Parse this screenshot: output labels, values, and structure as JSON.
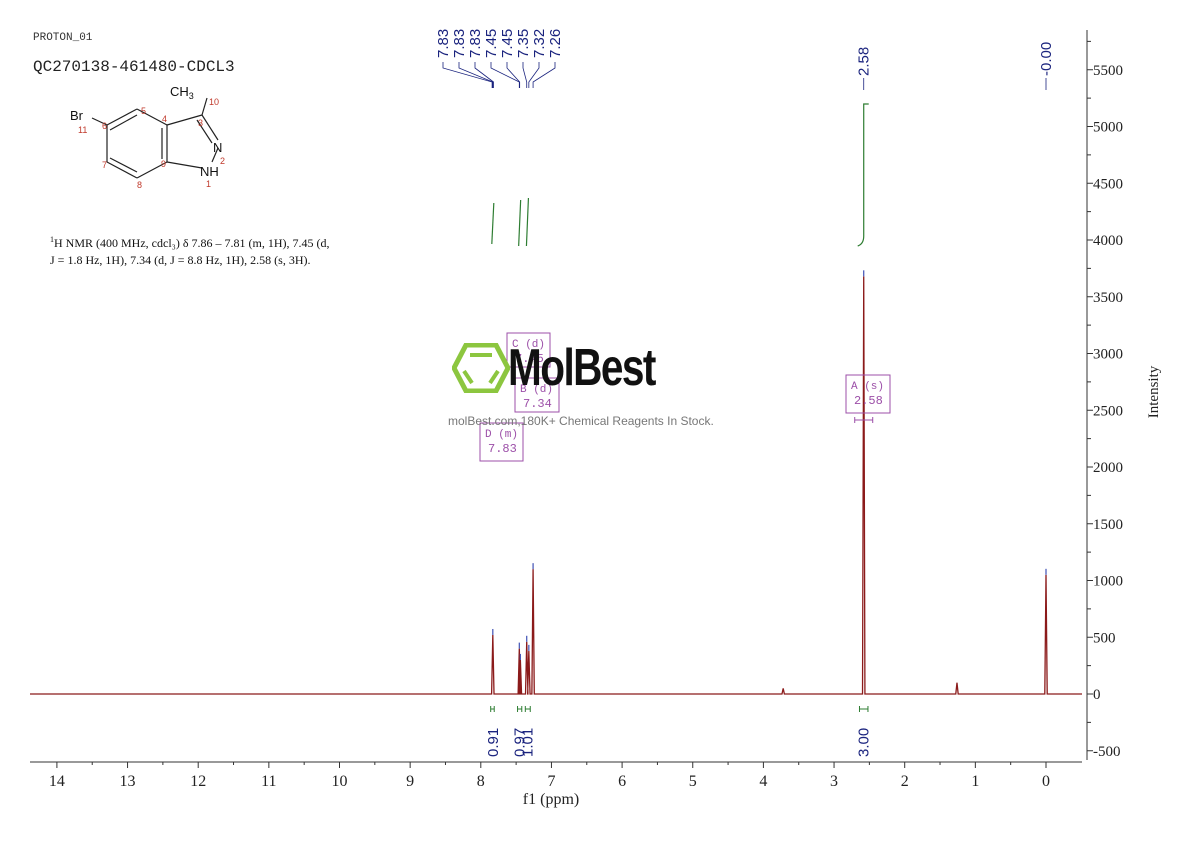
{
  "header": {
    "experiment": "PROTON_01",
    "sample_id": "QC270138-461480-CDCL3"
  },
  "molecule": {
    "name": "5-bromo-3-methyl-1H-indazole",
    "atoms": {
      "br": "Br",
      "ch3": "CH",
      "ch3_sub": "3",
      "n2": "N",
      "nh": "NH"
    },
    "numbering": [
      "1",
      "2",
      "3",
      "4",
      "5",
      "6",
      "7",
      "8",
      "9",
      "10",
      "11"
    ]
  },
  "nmr_description": {
    "line1": "H NMR (400 MHz, cdcl₃) δ 7.86 – 7.81 (m, 1H), 7.45 (d,",
    "sup": "1",
    "line2": "J = 1.8 Hz, 1H), 7.34 (d, J = 8.8 Hz, 1H), 2.58 (s, 3H)."
  },
  "watermark": {
    "brand": "MolBest",
    "tagline": "molBest.com,180K+ Chemical Reagents In Stock.",
    "logo_color": "#8cc63f"
  },
  "colors": {
    "spectrum": "#8b1a1a",
    "peak_label": "#1a237e",
    "integral": "#2e7d32",
    "multiplet_box": "#9c4fa8",
    "axis": "#333333"
  },
  "chart_data": {
    "type": "line",
    "title": "QC270138-461480-CDCL3",
    "xlabel": "f1 (ppm)",
    "ylabel": "Intensity",
    "xlim": [
      14.5,
      -0.5
    ],
    "ylim": [
      -600,
      5800
    ],
    "x_ticks": [
      "14",
      "13",
      "12",
      "11",
      "10",
      "9",
      "8",
      "7",
      "6",
      "5",
      "4",
      "3",
      "2",
      "1",
      "0"
    ],
    "y_ticks": [
      "-500",
      "0",
      "500",
      "1000",
      "1500",
      "2000",
      "2500",
      "3000",
      "3500",
      "4000",
      "4500",
      "5000",
      "5500"
    ],
    "peak_labels": [
      "7.83",
      "7.83",
      "7.83",
      "7.45",
      "7.45",
      "7.35",
      "7.32",
      "7.26",
      "2.58",
      "-0.00"
    ],
    "peaks": [
      {
        "ppm": 7.83,
        "intensity": 520
      },
      {
        "ppm": 7.455,
        "intensity": 400
      },
      {
        "ppm": 7.44,
        "intensity": 300
      },
      {
        "ppm": 7.35,
        "intensity": 460
      },
      {
        "ppm": 7.32,
        "intensity": 380
      },
      {
        "ppm": 7.26,
        "intensity": 1100
      },
      {
        "ppm": 3.72,
        "intensity": 50
      },
      {
        "ppm": 2.58,
        "intensity": 3680
      },
      {
        "ppm": 1.26,
        "intensity": 100
      },
      {
        "ppm": 0.0,
        "intensity": 1050
      }
    ],
    "integrals": [
      {
        "from": 7.86,
        "to": 7.81,
        "value": "0.91",
        "label_x_ppm": 7.83
      },
      {
        "from": 7.48,
        "to": 7.42,
        "value": "0.97",
        "label_x_ppm": 7.45
      },
      {
        "from": 7.37,
        "to": 7.3,
        "value": "1.01",
        "label_x_ppm": 7.34
      },
      {
        "from": 2.64,
        "to": 2.52,
        "value": "3.00",
        "label_x_ppm": 2.58
      }
    ],
    "multiplets": [
      {
        "id": "A",
        "type": "s",
        "shift": "2.58",
        "label": "A (s)"
      },
      {
        "id": "B",
        "type": "d",
        "shift": "7.34",
        "label": "B (d)"
      },
      {
        "id": "C",
        "type": "d",
        "shift": "7.45",
        "label": "C (d)"
      },
      {
        "id": "D",
        "type": "m",
        "shift": "7.83",
        "label": "D (m)"
      }
    ],
    "grid": false
  }
}
